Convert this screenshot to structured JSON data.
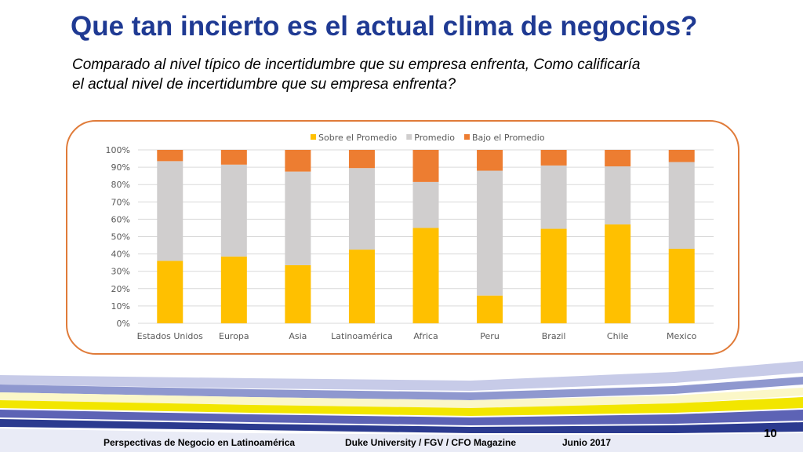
{
  "header": {
    "title": "Que tan incierto es el actual clima de negocios?",
    "subtitle_line1": "Comparado al nivel típico de incertidumbre que su empresa enfrenta, Como calificaría",
    "subtitle_line2": "el actual nivel de incertidumbre que su empresa enfrenta?"
  },
  "footer": {
    "left": "Perspectivas de Negocio en Latinoamérica",
    "center": "Duke University / FGV / CFO Magazine",
    "right": "Junio 2017",
    "page": "10"
  },
  "colors": {
    "title": "#1f3a93",
    "frame": "#e07b39"
  },
  "chart_data": {
    "type": "bar",
    "stacked": true,
    "categories": [
      "Estados Unidos",
      "Europa",
      "Asia",
      "Latinoamérica",
      "Africa",
      "Peru",
      "Brazil",
      "Chile",
      "Mexico"
    ],
    "series": [
      {
        "name": "Sobre el Promedio",
        "color": "#ffc000",
        "values": [
          36,
          38.5,
          33.5,
          42.5,
          55,
          16,
          54.5,
          57,
          43
        ]
      },
      {
        "name": "Promedio",
        "color": "#d0cece",
        "values": [
          57.5,
          53,
          54,
          47,
          26.5,
          72,
          36.5,
          33.5,
          50
        ]
      },
      {
        "name": "Bajo el Promedio",
        "color": "#ed7d31",
        "values": [
          6.5,
          8.5,
          12.5,
          10.5,
          18.5,
          12,
          9,
          9.5,
          7
        ]
      }
    ],
    "yticks": [
      "0%",
      "10%",
      "20%",
      "30%",
      "40%",
      "50%",
      "60%",
      "70%",
      "80%",
      "90%",
      "100%"
    ],
    "ylim": [
      0,
      100
    ],
    "grid": true,
    "legend_position": "top"
  }
}
